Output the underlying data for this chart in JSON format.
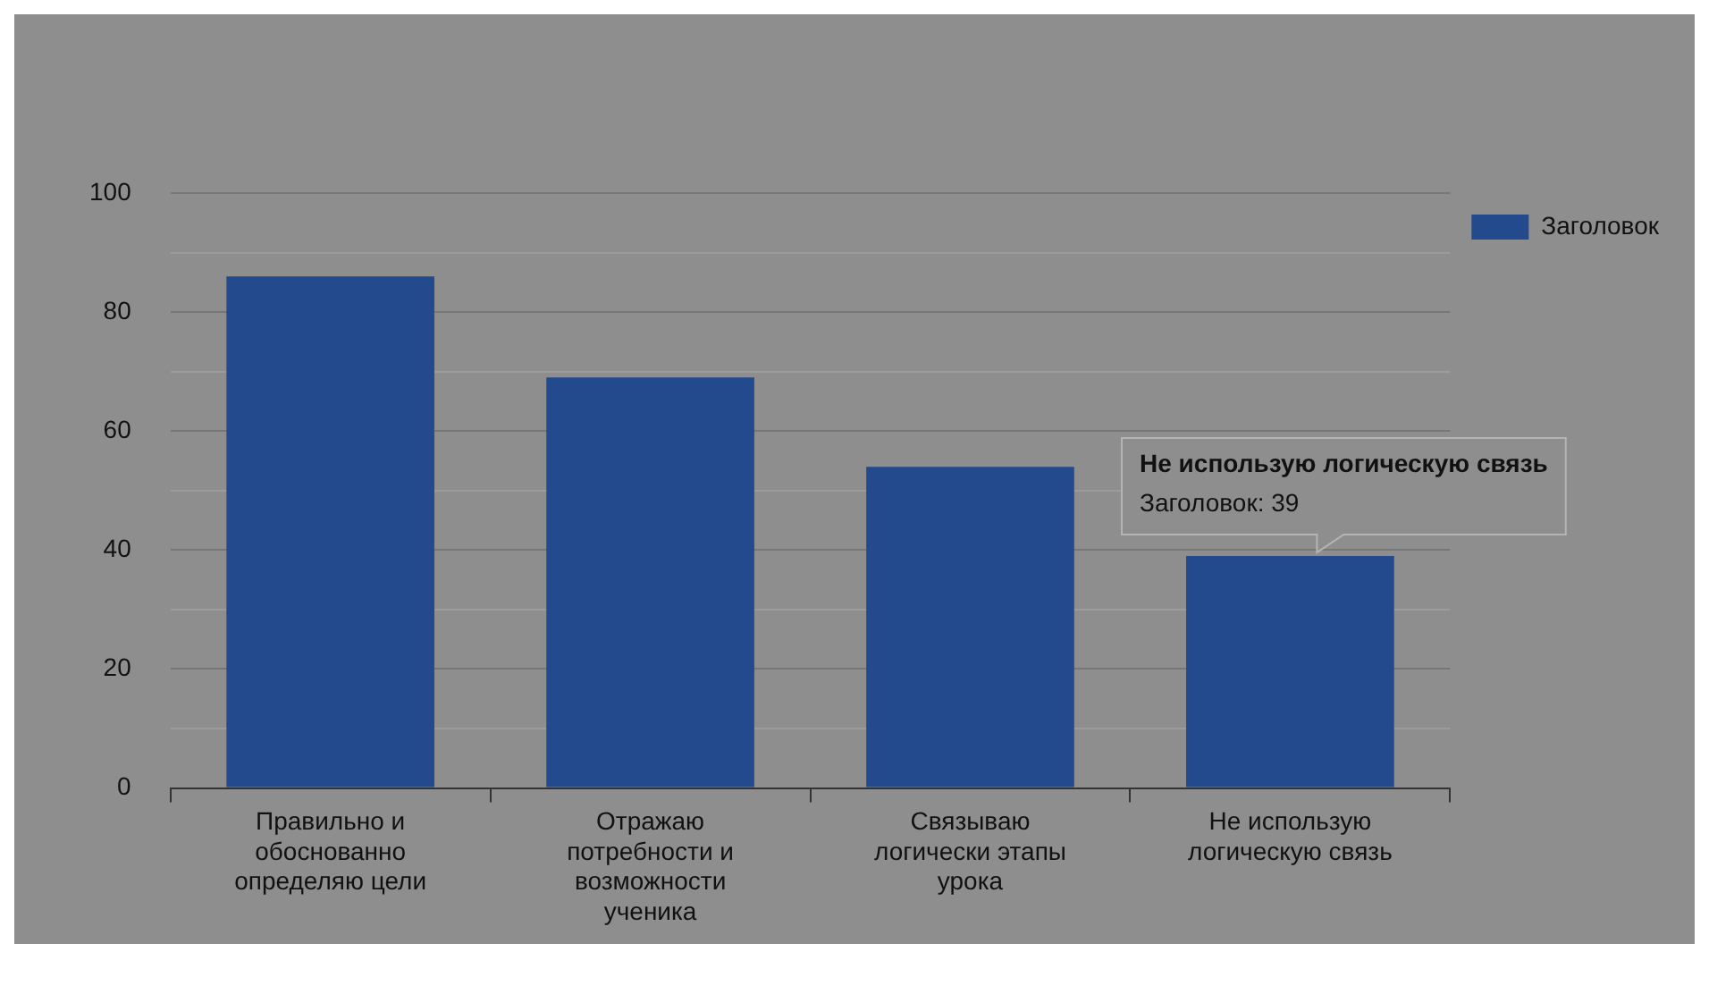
{
  "chart_data": {
    "type": "bar",
    "categories": [
      "Правильно и обоснованно определяю цели",
      "Отражаю потребности и возможности ученика",
      "Связываю логически этапы урока",
      "Не использую логическую связь"
    ],
    "series": [
      {
        "name": "Заголовок",
        "color": "#234a8c",
        "values": [
          86,
          69,
          54,
          39
        ]
      }
    ],
    "ylim": [
      0,
      100
    ],
    "yticks": [
      0,
      {
        "value": 10,
        "label": null
      },
      20,
      {
        "value": 30,
        "label": null
      },
      40,
      {
        "value": 50,
        "label": null
      },
      60,
      {
        "value": 70,
        "label": null
      },
      80,
      {
        "value": 90,
        "label": null
      },
      100
    ],
    "grid": true,
    "legend": "top right",
    "annotations": [
      {
        "text": "Не использую логическую связь\nЗаголовок: 39",
        "x": "Не использую логическую связь",
        "y": 39
      }
    ]
  }
}
